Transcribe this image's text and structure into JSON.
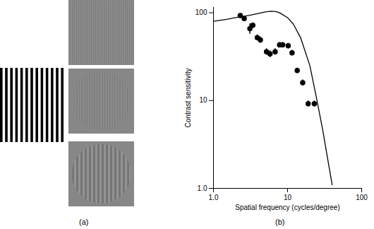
{
  "figure": {
    "labels": [
      "(a)",
      "(b)"
    ]
  },
  "chart_data": {
    "type": "scatter",
    "x_label": "Spatial frequency (cycles/degree)",
    "y_label": "Contrast sensitivity",
    "log": true,
    "grid": false,
    "xlim": [
      1,
      100
    ],
    "ylim": [
      1,
      115
    ],
    "xticks": [
      {
        "value": 1,
        "label": "1.0"
      },
      10,
      100
    ],
    "yticks": [
      {
        "value": 1,
        "label": "1.0"
      },
      10,
      100
    ],
    "series": [
      {
        "type": "scatter",
        "color": "#000000",
        "marker": "circle",
        "x": [
          2.3,
          2.6,
          3.1,
          3.4,
          3.9,
          4.3,
          5.2,
          5.8,
          6.8,
          7.8,
          8.6,
          10.2,
          11.5,
          13.5,
          16,
          19,
          23
        ],
        "values": [
          93,
          86,
          66,
          72,
          52,
          49,
          36,
          34,
          36,
          43,
          43,
          42,
          35,
          22,
          16,
          9.2,
          9.2
        ],
        "errors": [
          5,
          5,
          9,
          5,
          4,
          4,
          3,
          3,
          3,
          3,
          3,
          3,
          2.5,
          1.5,
          1.2,
          0.7,
          0.7
        ]
      },
      {
        "type": "line",
        "color": "#000000",
        "line_style": "solid",
        "x": [
          1,
          1.5,
          2,
          3,
          4,
          5,
          6,
          7,
          8,
          10,
          12,
          15,
          20,
          25,
          30,
          35,
          40
        ],
        "values": [
          80,
          84,
          88,
          93,
          98,
          102,
          104,
          103,
          99,
          88,
          74,
          52,
          25,
          10,
          4.5,
          2.1,
          1.1
        ]
      }
    ]
  }
}
